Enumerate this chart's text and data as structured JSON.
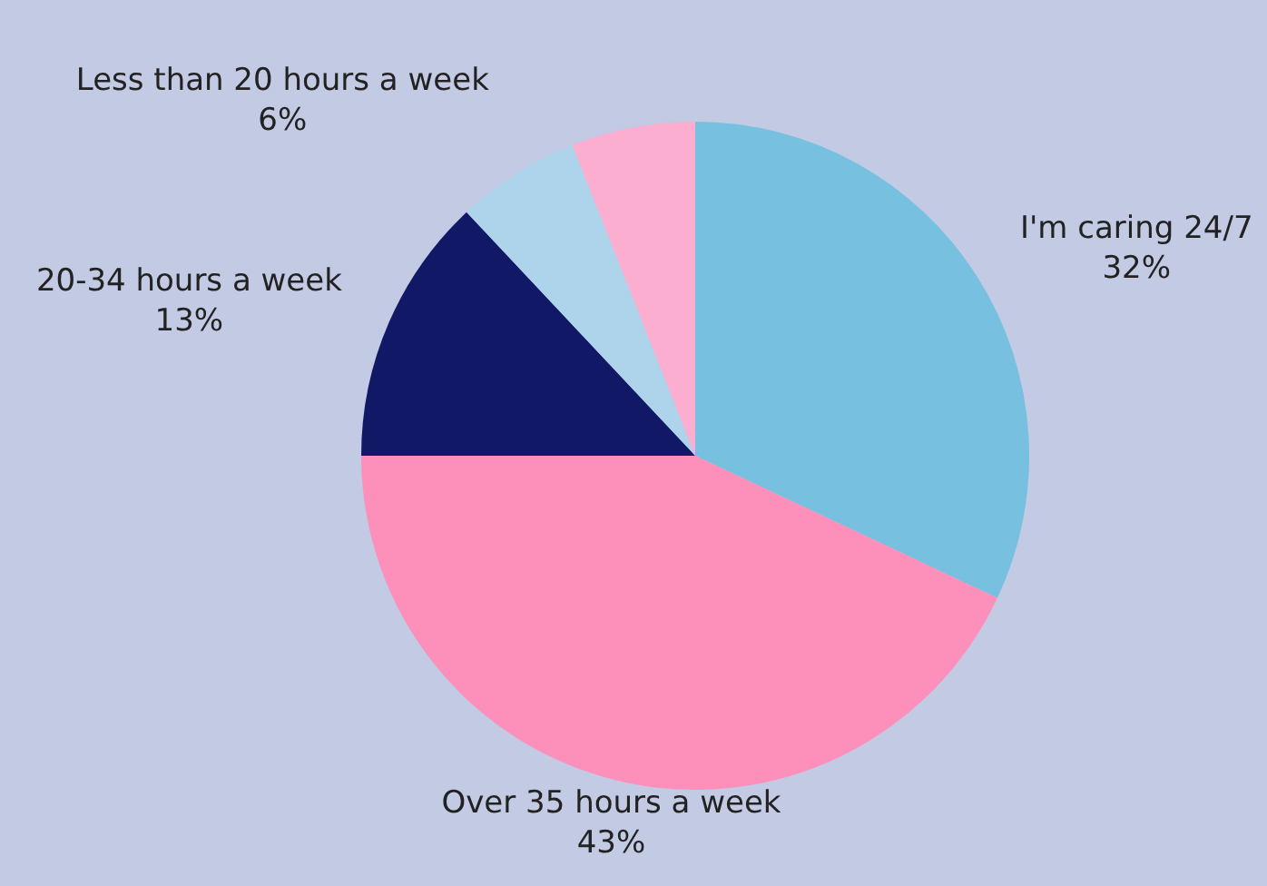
{
  "chart_data": {
    "type": "pie",
    "categories": [
      "I'm caring 24/7",
      "Over 35 hours a week",
      "20-34 hours a week",
      "Less than 20 hours a week",
      null
    ],
    "values": [
      32,
      43,
      13,
      6,
      6
    ],
    "colors": [
      "#78c0e0",
      "#fd90bb",
      "#111866",
      "#aed4ec",
      "#fbaed0"
    ],
    "value_labels": [
      "32%",
      "43%",
      "13%",
      "6%",
      null
    ],
    "legend": false
  }
}
